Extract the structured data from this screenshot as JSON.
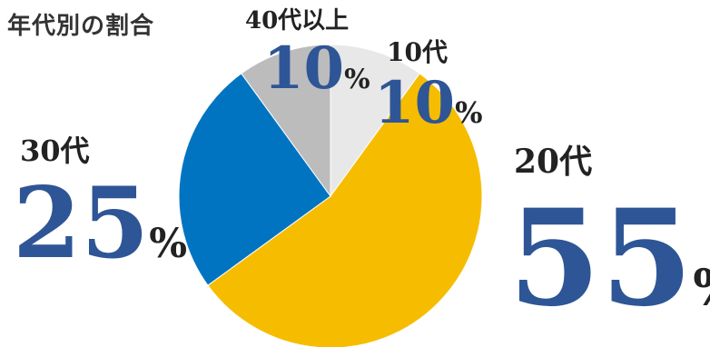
{
  "chart_data": {
    "type": "pie",
    "title": "年代別の割合",
    "categories": [
      "10代",
      "20代",
      "30代",
      "40代以上"
    ],
    "values": [
      10,
      55,
      25,
      10
    ],
    "unit": "%",
    "colors": [
      "#e8e8e8",
      "#f6bd00",
      "#0074c1",
      "#bcbcbc"
    ],
    "value_color": "#2e5596",
    "start_angle": "12 o'clock, clockwise",
    "legend": "none (labels beside slices)"
  }
}
